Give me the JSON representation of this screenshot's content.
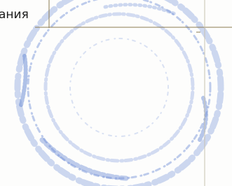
{
  "fragment": {
    "text": "ания"
  }
}
